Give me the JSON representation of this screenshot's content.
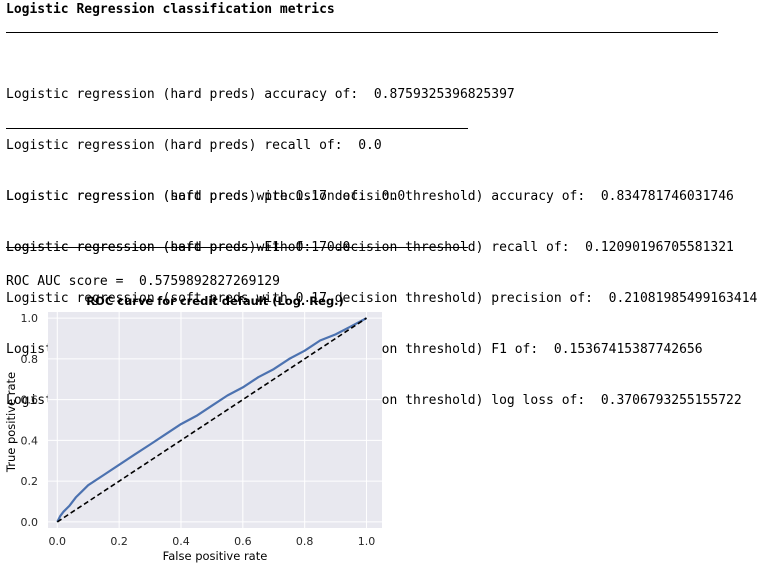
{
  "report": {
    "header": "Logistic Regression classification metrics",
    "hard_lines": [
      "Logistic regression (hard preds) accuracy of:  0.8759325396825397",
      "Logistic regression (hard preds) recall of:  0.0",
      "Logistic regression (hard preds) precision of:  0.0",
      "Logistic regression (hard preds) F1 of:  0.0"
    ],
    "soft_lines": [
      "Logistic regression (soft preds with 0.17 decision threshold) accuracy of:  0.834781746031746",
      "Logistic regression (soft preds with 0.17 decision threshold) recall of:  0.12090196705581321",
      "Logistic regression (soft preds with 0.17 decision threshold) precision of:  0.21081985499163414",
      "Logistic regression (soft preds with 0.17 decision threshold) F1 of:  0.15367415387742656",
      "Logistic regression (soft preds with 0.17 decision threshold) log loss of:  0.3706793255155722"
    ],
    "roc_auc_line": "ROC AUC score =  0.5759892827269129"
  },
  "chart_data": {
    "type": "line",
    "title": "ROC curve for credit default (Log. Reg.)",
    "xlabel": "False positive rate",
    "ylabel": "True positive rate",
    "xlim": [
      -0.03,
      1.05
    ],
    "ylim": [
      -0.03,
      1.03
    ],
    "xticks": [
      "0.0",
      "0.2",
      "0.4",
      "0.6",
      "0.8",
      "1.0"
    ],
    "yticks": [
      "0.0",
      "0.2",
      "0.4",
      "0.6",
      "0.8",
      "1.0"
    ],
    "grid": true,
    "background": "#e8e8ef",
    "series": [
      {
        "style": "solid",
        "color": "#4c72b0",
        "x": [
          0.0,
          0.01,
          0.02,
          0.04,
          0.06,
          0.08,
          0.1,
          0.15,
          0.2,
          0.25,
          0.3,
          0.35,
          0.4,
          0.45,
          0.5,
          0.55,
          0.6,
          0.65,
          0.7,
          0.75,
          0.8,
          0.85,
          0.9,
          0.95,
          1.0
        ],
        "y": [
          0.0,
          0.03,
          0.05,
          0.08,
          0.12,
          0.15,
          0.18,
          0.23,
          0.28,
          0.33,
          0.38,
          0.43,
          0.48,
          0.52,
          0.57,
          0.62,
          0.66,
          0.71,
          0.75,
          0.8,
          0.84,
          0.89,
          0.92,
          0.96,
          1.0
        ]
      },
      {
        "style": "dashed",
        "color": "#000000",
        "x": [
          0.0,
          1.0
        ],
        "y": [
          0.0,
          1.0
        ]
      }
    ]
  }
}
